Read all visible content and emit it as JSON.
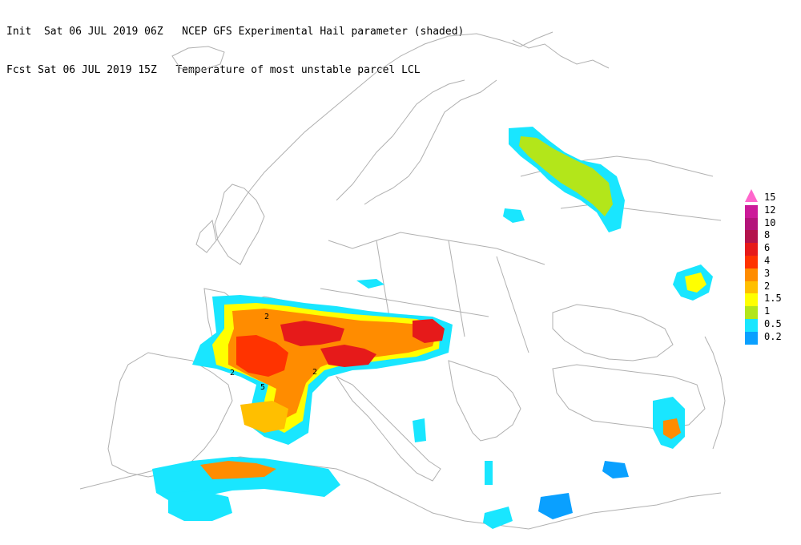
{
  "header": {
    "line1": "Init  Sat 06 JUL 2019 06Z   NCEP GFS Experimental Hail parameter (shaded)",
    "line2": "Fcst Sat 06 JUL 2019 15Z   Temperature of most unstable parcel LCL"
  },
  "legend": [
    {
      "label": "15",
      "color": "#ff66cc",
      "arrow": true
    },
    {
      "label": "12",
      "color": "#cc1a99"
    },
    {
      "label": "10",
      "color": "#b3147a"
    },
    {
      "label": "8",
      "color": "#b3144c"
    },
    {
      "label": "6",
      "color": "#e61a1a"
    },
    {
      "label": "4",
      "color": "#ff3300"
    },
    {
      "label": "3",
      "color": "#ff8c00"
    },
    {
      "label": "2",
      "color": "#ffbf00"
    },
    {
      "label": "1.5",
      "color": "#ffff00"
    },
    {
      "label": "1",
      "color": "#b3e61a"
    },
    {
      "label": "0.5",
      "color": "#19e6ff"
    },
    {
      "label": "0.2",
      "color": "#0aa0ff"
    }
  ],
  "contour_labels": [
    "2",
    "5",
    "2",
    "2"
  ]
}
